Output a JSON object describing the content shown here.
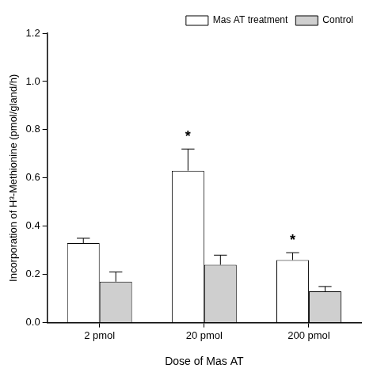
{
  "chart_data": {
    "type": "bar",
    "categories": [
      "2 pmol",
      "20 pmol",
      "200 pmol"
    ],
    "series": [
      {
        "name": "Mas AT treatment",
        "color": "#ffffff",
        "values": [
          0.33,
          0.63,
          0.26
        ],
        "errors": [
          0.02,
          0.09,
          0.03
        ]
      },
      {
        "name": "Control",
        "color": "#cfcfcf",
        "values": [
          0.17,
          0.24,
          0.13
        ],
        "errors": [
          0.04,
          0.04,
          0.02
        ]
      }
    ],
    "x_label": "Dose of Mas AT",
    "y_label": "Incorporation of H³-Methionine (pmol/gland/h)",
    "ylim": [
      0,
      1.2
    ],
    "yticks": [
      {
        "value": 0,
        "label": "0.0"
      },
      0.2,
      0.4,
      0.6,
      0.8,
      {
        "value": 1,
        "label": "1.0"
      },
      1.2
    ],
    "annotations": [
      {
        "category": "20 pmol",
        "series": "Mas AT treatment",
        "text": "*"
      },
      {
        "category": "200 pmol",
        "series": "Mas AT treatment",
        "text": "*"
      }
    ],
    "grid": false,
    "legend": "upper right"
  }
}
